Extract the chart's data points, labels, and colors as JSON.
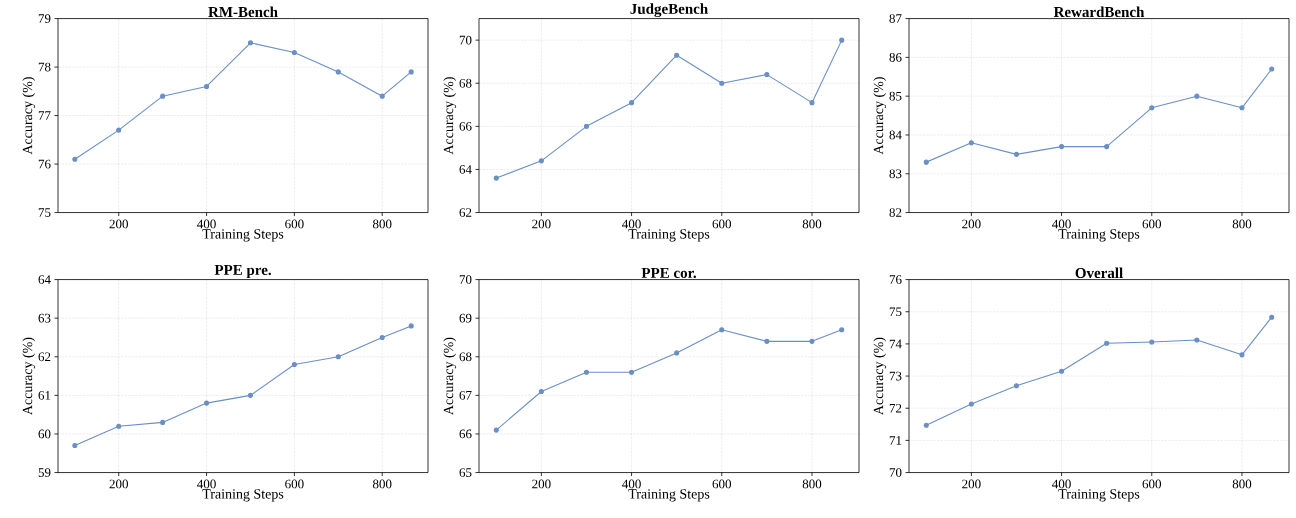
{
  "chart_data": [
    {
      "type": "line",
      "title": "RM-Bench",
      "xlabel": "Training Steps",
      "ylabel": "Accuracy (%)",
      "x": [
        100,
        200,
        300,
        400,
        500,
        600,
        700,
        800,
        866
      ],
      "values": [
        76.1,
        76.7,
        77.4,
        77.6,
        78.5,
        78.3,
        77.9,
        77.4,
        77.9
      ],
      "color": "#6a8fc4",
      "xlim": [
        61.7,
        904.3
      ],
      "ylim": [
        75,
        79
      ],
      "xticks": [
        200,
        400,
        600,
        800
      ],
      "yticks": [
        75,
        76,
        77,
        78,
        79
      ],
      "grid": true,
      "marker": "circle"
    },
    {
      "type": "line",
      "title": "JudgeBench",
      "xlabel": "Training Steps",
      "ylabel": "Accuracy (%)",
      "x": [
        100,
        200,
        300,
        400,
        500,
        600,
        700,
        800,
        866
      ],
      "values": [
        63.6,
        64.4,
        66.0,
        67.1,
        69.3,
        68.0,
        68.4,
        67.1,
        70.0
      ],
      "color": "#6a8fc4",
      "xlim": [
        61.7,
        904.3
      ],
      "ylim": [
        62,
        71
      ],
      "xticks": [
        200,
        400,
        600,
        800
      ],
      "yticks": [
        62,
        64,
        66,
        68,
        70
      ],
      "grid": true,
      "marker": "circle"
    },
    {
      "type": "line",
      "title": "RewardBench",
      "xlabel": "Training Steps",
      "ylabel": "Accuracy (%)",
      "x": [
        100,
        200,
        300,
        400,
        500,
        600,
        700,
        800,
        866
      ],
      "values": [
        83.3,
        83.8,
        83.5,
        83.7,
        83.7,
        84.7,
        85.0,
        84.7,
        85.7
      ],
      "color": "#6a8fc4",
      "xlim": [
        61.7,
        904.3
      ],
      "ylim": [
        82,
        87
      ],
      "xticks": [
        200,
        400,
        600,
        800
      ],
      "yticks": [
        82,
        83,
        84,
        85,
        86,
        87
      ],
      "grid": true,
      "marker": "circle"
    },
    {
      "type": "line",
      "title": "PPE pre.",
      "xlabel": "Training Steps",
      "ylabel": "Accuracy (%)",
      "x": [
        100,
        200,
        300,
        400,
        500,
        600,
        700,
        800,
        866
      ],
      "values": [
        59.7,
        60.2,
        60.3,
        60.8,
        61.0,
        61.8,
        62.0,
        62.5,
        62.8
      ],
      "color": "#6a8fc4",
      "xlim": [
        61.7,
        904.3
      ],
      "ylim": [
        59,
        64
      ],
      "xticks": [
        200,
        400,
        600,
        800
      ],
      "yticks": [
        59,
        60,
        61,
        62,
        63,
        64
      ],
      "grid": true,
      "marker": "circle"
    },
    {
      "type": "line",
      "title": "PPE cor.",
      "xlabel": "Training Steps",
      "ylabel": "Accuracy (%)",
      "x": [
        100,
        200,
        300,
        400,
        500,
        600,
        700,
        800,
        866
      ],
      "values": [
        66.1,
        67.1,
        67.6,
        67.6,
        68.1,
        68.7,
        68.4,
        68.4,
        68.7
      ],
      "color": "#6a8fc4",
      "xlim": [
        61.7,
        904.3
      ],
      "ylim": [
        65,
        70
      ],
      "xticks": [
        200,
        400,
        600,
        800
      ],
      "yticks": [
        65,
        66,
        67,
        68,
        69,
        70
      ],
      "grid": true,
      "marker": "circle"
    },
    {
      "type": "line",
      "title": "Overall",
      "xlabel": "Training Steps",
      "ylabel": "Accuracy (%)",
      "x": [
        100,
        200,
        300,
        400,
        500,
        600,
        700,
        800,
        866
      ],
      "values": [
        71.47,
        72.13,
        72.7,
        73.15,
        74.02,
        74.06,
        74.12,
        73.66,
        74.83
      ],
      "color": "#6a8fc4",
      "xlim": [
        61.7,
        904.3
      ],
      "ylim": [
        70,
        76
      ],
      "xticks": [
        200,
        400,
        600,
        800
      ],
      "yticks": [
        70,
        71,
        72,
        73,
        74,
        75,
        76
      ],
      "grid": true,
      "marker": "circle"
    }
  ]
}
